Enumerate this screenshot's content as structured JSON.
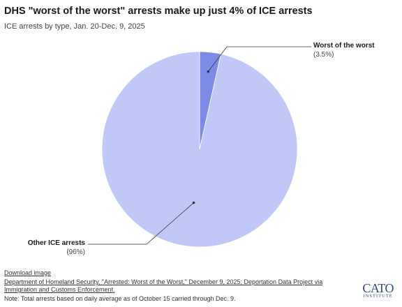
{
  "title": "DHS \"worst of the worst\" arrests make up just 4% of ICE arrests",
  "subtitle": "ICE arrests by type, Jan. 20-Dec. 9, 2025",
  "chart_data": {
    "type": "pie",
    "slices": [
      {
        "label": "Worst of the worst",
        "value": 3.5,
        "value_label": "(3.5%)",
        "color": "#7b8be6"
      },
      {
        "label": "Other ICE arrests",
        "value": 96.5,
        "value_label": "(96%)",
        "color": "#c0c8f7"
      }
    ],
    "start_angle": "12 o'clock",
    "direction": "clockwise"
  },
  "footer": {
    "download": "Download image",
    "source_line1": "Department of Homeland Security, \"Arrested: Worst of the Worst,\" December 9, 2025; Deportation Data Project via",
    "source_line2": "Immigration and Customs Enforcement.",
    "note": "Note: Total arrests based on daily average as of October 15 carried through Dec. 9."
  },
  "logo": {
    "main": "CATO",
    "sub": "INSTITUTE"
  }
}
